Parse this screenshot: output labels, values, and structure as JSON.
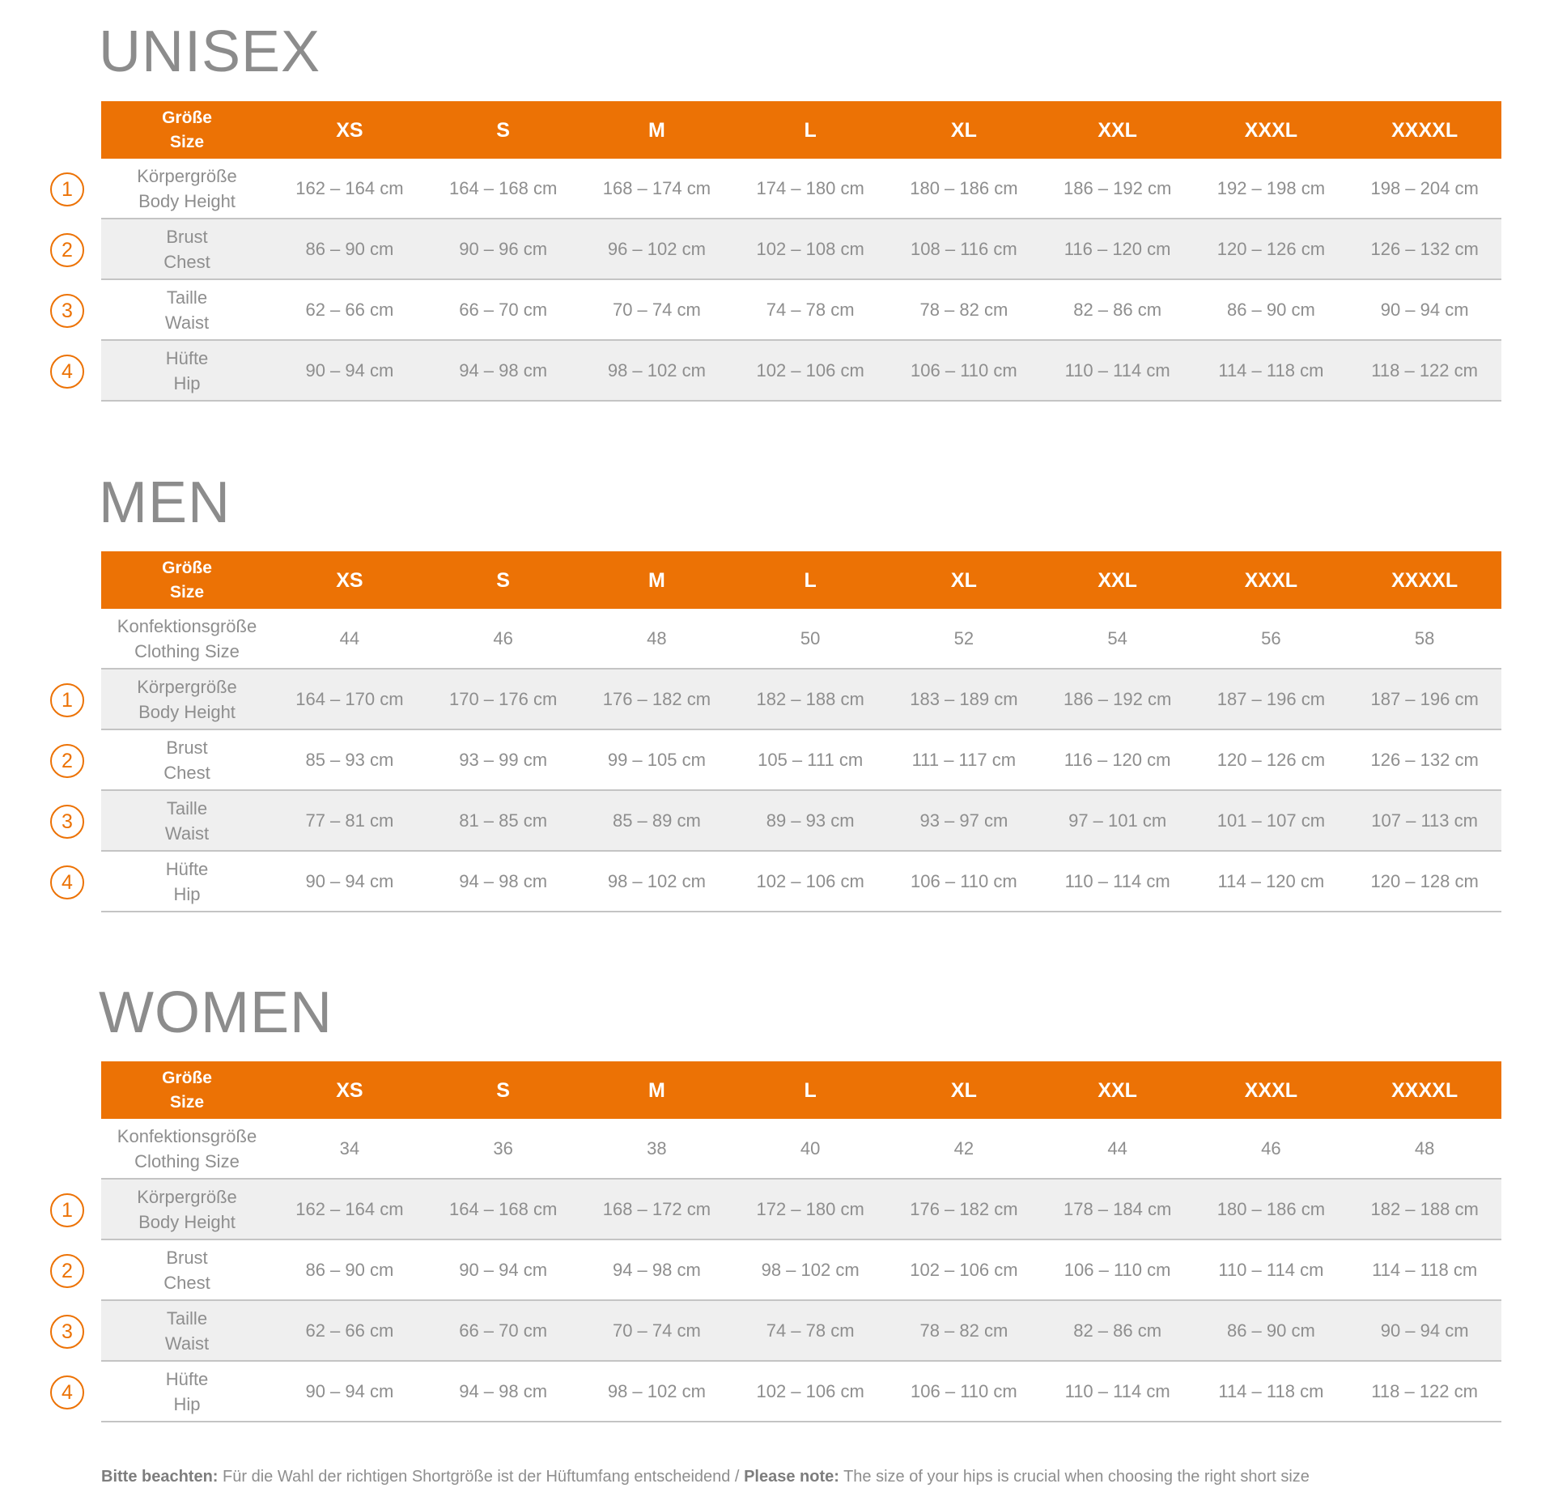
{
  "header": {
    "size_de": "Größe",
    "size_en": "Size",
    "sizes": [
      "XS",
      "S",
      "M",
      "L",
      "XL",
      "XXL",
      "XXXL",
      "XXXXL"
    ]
  },
  "accent_color": "#ec7205",
  "sections": [
    {
      "title": "UNISEX",
      "rows": [
        {
          "marker": "1",
          "label_de": "Körpergröße",
          "label_en": "Body Height",
          "values": [
            "162 – 164 cm",
            "164 – 168 cm",
            "168 – 174 cm",
            "174 – 180 cm",
            "180 – 186 cm",
            "186 – 192 cm",
            "192 – 198 cm",
            "198 – 204 cm"
          ]
        },
        {
          "marker": "2",
          "label_de": "Brust",
          "label_en": "Chest",
          "values": [
            "86 – 90 cm",
            "90 – 96 cm",
            "96 – 102 cm",
            "102 – 108 cm",
            "108 – 116 cm",
            "116 – 120 cm",
            "120 – 126 cm",
            "126 – 132 cm"
          ]
        },
        {
          "marker": "3",
          "label_de": "Taille",
          "label_en": "Waist",
          "values": [
            "62 – 66 cm",
            "66 – 70 cm",
            "70 – 74 cm",
            "74 – 78 cm",
            "78 – 82 cm",
            "82 – 86 cm",
            "86 – 90 cm",
            "90 – 94 cm"
          ]
        },
        {
          "marker": "4",
          "label_de": "Hüfte",
          "label_en": "Hip",
          "values": [
            "90 – 94 cm",
            "94 – 98 cm",
            "98 – 102 cm",
            "102 – 106 cm",
            "106 – 110 cm",
            "110 – 114 cm",
            "114 – 118 cm",
            "118 – 122 cm"
          ]
        }
      ]
    },
    {
      "title": "MEN",
      "rows": [
        {
          "marker": "",
          "label_de": "Konfektionsgröße",
          "label_en": "Clothing Size",
          "values": [
            "44",
            "46",
            "48",
            "50",
            "52",
            "54",
            "56",
            "58"
          ]
        },
        {
          "marker": "1",
          "label_de": "Körpergröße",
          "label_en": "Body Height",
          "values": [
            "164 – 170 cm",
            "170 – 176 cm",
            "176 – 182 cm",
            "182 – 188 cm",
            "183 – 189 cm",
            "186 – 192 cm",
            "187 – 196 cm",
            "187 – 196 cm"
          ]
        },
        {
          "marker": "2",
          "label_de": "Brust",
          "label_en": "Chest",
          "values": [
            "85 – 93 cm",
            "93 – 99 cm",
            "99 – 105 cm",
            "105 – 111 cm",
            "111 – 117 cm",
            "116 – 120 cm",
            "120 – 126 cm",
            "126 – 132 cm"
          ]
        },
        {
          "marker": "3",
          "label_de": "Taille",
          "label_en": "Waist",
          "values": [
            "77 – 81 cm",
            "81 – 85 cm",
            "85 – 89 cm",
            "89 – 93 cm",
            "93 – 97 cm",
            "97 – 101 cm",
            "101 – 107 cm",
            "107 – 113 cm"
          ]
        },
        {
          "marker": "4",
          "label_de": "Hüfte",
          "label_en": "Hip",
          "values": [
            "90 – 94 cm",
            "94 – 98 cm",
            "98 – 102 cm",
            "102 – 106 cm",
            "106 – 110 cm",
            "110 – 114 cm",
            "114 – 120 cm",
            "120 – 128 cm"
          ]
        }
      ]
    },
    {
      "title": "WOMEN",
      "rows": [
        {
          "marker": "",
          "label_de": "Konfektionsgröße",
          "label_en": "Clothing Size",
          "values": [
            "34",
            "36",
            "38",
            "40",
            "42",
            "44",
            "46",
            "48"
          ]
        },
        {
          "marker": "1",
          "label_de": "Körpergröße",
          "label_en": "Body Height",
          "values": [
            "162 – 164 cm",
            "164 – 168 cm",
            "168 – 172 cm",
            "172 – 180 cm",
            "176 – 182 cm",
            "178 – 184 cm",
            "180 – 186 cm",
            "182 – 188 cm"
          ]
        },
        {
          "marker": "2",
          "label_de": "Brust",
          "label_en": "Chest",
          "values": [
            "86 – 90 cm",
            "90 – 94 cm",
            "94 – 98 cm",
            "98 – 102 cm",
            "102 – 106 cm",
            "106 – 110 cm",
            "110 – 114 cm",
            "114 – 118 cm"
          ]
        },
        {
          "marker": "3",
          "label_de": "Taille",
          "label_en": "Waist",
          "values": [
            "62 – 66 cm",
            "66 – 70 cm",
            "70 – 74 cm",
            "74 – 78 cm",
            "78 – 82 cm",
            "82 – 86 cm",
            "86 – 90 cm",
            "90 – 94 cm"
          ]
        },
        {
          "marker": "4",
          "label_de": "Hüfte",
          "label_en": "Hip",
          "values": [
            "90 – 94 cm",
            "94 – 98 cm",
            "98 – 102 cm",
            "102 – 106 cm",
            "106 – 110 cm",
            "110 – 114 cm",
            "114 – 118 cm",
            "118 – 122 cm"
          ]
        }
      ]
    }
  ],
  "note": {
    "de_bold": "Bitte beachten:",
    "de_text": " Für die Wahl der richtigen Shortgröße ist der Hüftumfang entscheidend / ",
    "en_bold": "Please note:",
    "en_text": " The size of your hips is crucial when choosing the right short size"
  }
}
